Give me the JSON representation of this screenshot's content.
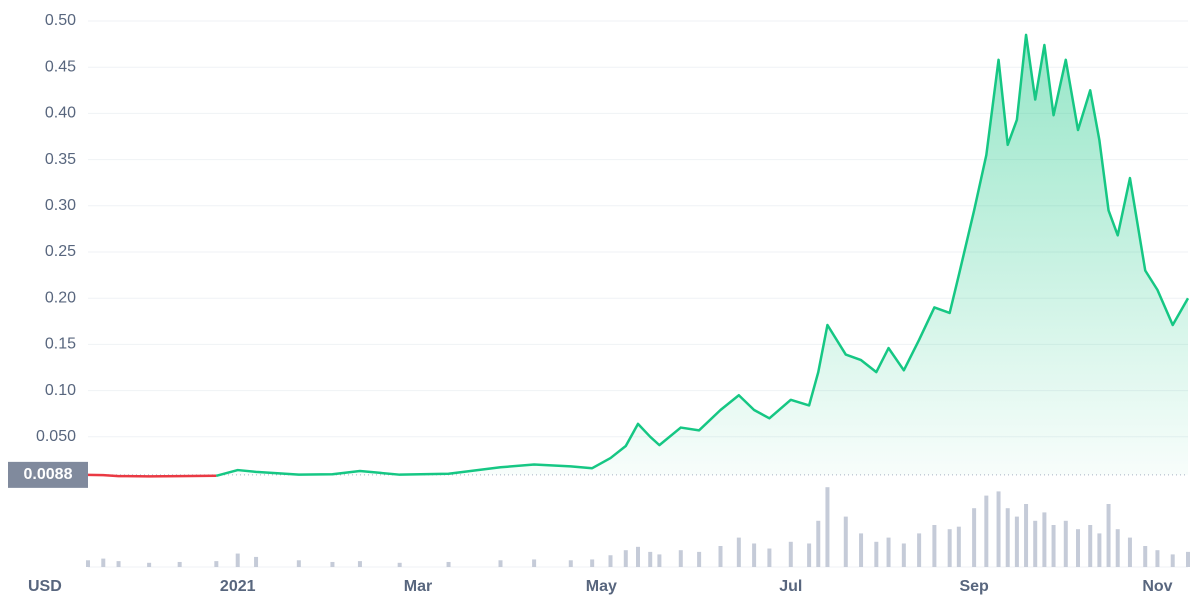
{
  "chart_data": {
    "type": "line",
    "currency": "USD",
    "base_value": 0.0088,
    "color": "#16c784",
    "down_color": "#ea3943",
    "volume_color": "#c5cbd8",
    "grid": true,
    "x": [
      0,
      5,
      10,
      20,
      30,
      42,
      49,
      55,
      69,
      80,
      89,
      102,
      118,
      135,
      146,
      158,
      165,
      171,
      176,
      180,
      184,
      187,
      194,
      200,
      207,
      213,
      218,
      223,
      230,
      236,
      239,
      242,
      248,
      253,
      258,
      262,
      267,
      272,
      277,
      282,
      285,
      290,
      294,
      298,
      301,
      304,
      307,
      310,
      313,
      316,
      320,
      324,
      328,
      331,
      334,
      337,
      341,
      346,
      350,
      355,
      360
    ],
    "values": [
      0.0088,
      0.0085,
      0.0075,
      0.0072,
      0.0074,
      0.0078,
      0.014,
      0.012,
      0.009,
      0.0095,
      0.013,
      0.009,
      0.01,
      0.017,
      0.02,
      0.018,
      0.016,
      0.027,
      0.04,
      0.064,
      0.05,
      0.041,
      0.06,
      0.057,
      0.079,
      0.095,
      0.079,
      0.07,
      0.09,
      0.084,
      0.12,
      0.171,
      0.139,
      0.133,
      0.12,
      0.146,
      0.122,
      0.155,
      0.19,
      0.184,
      0.225,
      0.295,
      0.355,
      0.458,
      0.366,
      0.393,
      0.485,
      0.415,
      0.474,
      0.398,
      0.458,
      0.382,
      0.425,
      0.371,
      0.295,
      0.268,
      0.33,
      0.23,
      0.209,
      0.171,
      0.2
    ],
    "volume": [
      8,
      10,
      7,
      5,
      6,
      7,
      16,
      12,
      8,
      6,
      7,
      5,
      6,
      8,
      9,
      8,
      9,
      14,
      20,
      24,
      18,
      15,
      20,
      18,
      25,
      35,
      28,
      22,
      30,
      28,
      55,
      95,
      60,
      40,
      30,
      35,
      28,
      40,
      50,
      45,
      48,
      70,
      85,
      90,
      70,
      60,
      75,
      55,
      65,
      50,
      55,
      45,
      50,
      40,
      75,
      45,
      35,
      25,
      20,
      15,
      18
    ],
    "volume_lim": [
      0,
      100
    ],
    "xlim": [
      0,
      360
    ],
    "xticks": [
      {
        "value": 49,
        "label": "2021"
      },
      {
        "value": 108,
        "label": "Mar"
      },
      {
        "value": 168,
        "label": "May"
      },
      {
        "value": 230,
        "label": "Jul"
      },
      {
        "value": 290,
        "label": "Sep"
      },
      {
        "value": 350,
        "label": "Nov"
      }
    ],
    "ylim": [
      0,
      0.5
    ],
    "yticks": [
      {
        "value": 0.05,
        "label": "0.050"
      },
      {
        "value": 0.1,
        "label": "0.10"
      },
      0.15,
      {
        "value": 0.2,
        "label": "0.20"
      },
      0.25,
      {
        "value": 0.3,
        "label": "0.30"
      },
      0.35,
      {
        "value": 0.4,
        "label": "0.40"
      },
      0.45,
      {
        "value": 0.5,
        "label": "0.50"
      }
    ]
  }
}
